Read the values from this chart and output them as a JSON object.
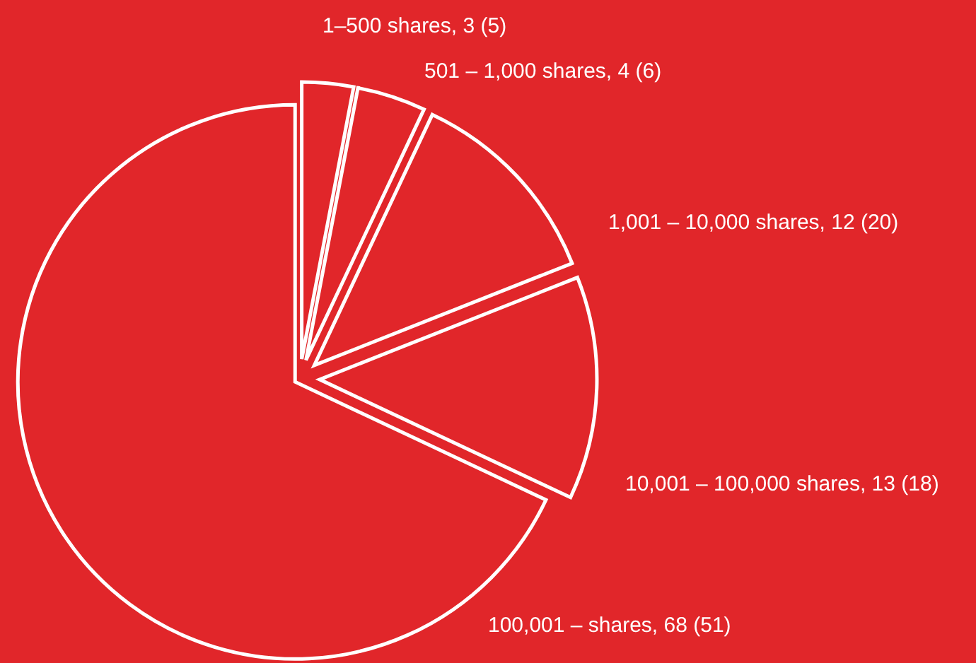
{
  "chart_data": {
    "type": "pie",
    "categories": [
      "1–500 shares, 3 (5)",
      "501 – 1,000 shares, 4 (6)",
      "1,001 – 10,000 shares, 12 (20)",
      "10,001 – 100,000 shares, 13 (18)",
      "100,001 –  shares, 68 (51)"
    ],
    "values": [
      3,
      4,
      12,
      13,
      68
    ],
    "colors": [
      "#e1262a",
      "#e1262a",
      "#e1262a",
      "#e1262a",
      "#e1262a"
    ]
  }
}
